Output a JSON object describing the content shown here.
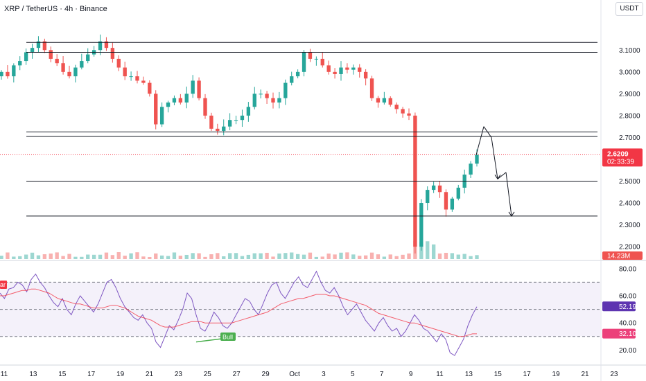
{
  "header": {
    "title": "XRP / TetherUS · 4h · Binance",
    "currency": "USDT"
  },
  "colors": {
    "up": "#26a69a",
    "down": "#ef5350",
    "rsi_line": "#7e57c2",
    "rsi_ma": "#f23645",
    "rsi_band": "#ede7f6",
    "bull_label": "#4caf50",
    "price_marker": "#f23645"
  },
  "chart_data": [
    {
      "type": "candlestick",
      "ylim": [
        2.14,
        3.25
      ],
      "y_ticks": [
        "3.1000",
        "3.0000",
        "2.9000",
        "2.8000",
        "2.7000",
        "2.6000",
        "2.5000",
        "2.4000",
        "2.3000",
        "2.2000"
      ],
      "y_tick_values": [
        3.1,
        3.0,
        2.9,
        2.8,
        2.7,
        2.6,
        2.5,
        2.4,
        2.3,
        2.2
      ],
      "x_ticks": [
        "11",
        "13",
        "15",
        "17",
        "19",
        "21",
        "23",
        "25",
        "27",
        "29",
        "Oct",
        "3",
        "5",
        "7",
        "9",
        "11",
        "13",
        "15",
        "17",
        "19",
        "21",
        "23"
      ],
      "last_price_label": "2.6209",
      "last_price": 2.6209,
      "countdown_label": "02:33:39",
      "volume_label": "14.23M",
      "horizontal_levels": [
        3.135,
        3.09,
        2.725,
        2.705,
        2.5,
        2.34
      ],
      "close_path": [
        3.0,
        2.98,
        3.03,
        3.05,
        3.09,
        3.11,
        3.14,
        3.1,
        3.06,
        3.04,
        3.0,
        2.98,
        3.02,
        3.05,
        3.08,
        3.1,
        3.14,
        3.11,
        3.06,
        3.02,
        2.98,
        2.98,
        2.96,
        2.95,
        2.9,
        2.76,
        2.84,
        2.86,
        2.88,
        2.86,
        2.9,
        2.96,
        2.88,
        2.8,
        2.74,
        2.73,
        2.75,
        2.78,
        2.78,
        2.8,
        2.84,
        2.9,
        2.9,
        2.88,
        2.86,
        2.88,
        2.95,
        2.98,
        3.0,
        3.09,
        3.06,
        3.06,
        3.03,
        3.0,
        2.99,
        3.02,
        3.01,
        3.02,
        3.0,
        2.97,
        2.88,
        2.86,
        2.88,
        2.85,
        2.83,
        2.81,
        2.8,
        2.2,
        2.4,
        2.46,
        2.48,
        2.45,
        2.37,
        2.42,
        2.47,
        2.53,
        2.58,
        2.62
      ],
      "projection": [
        [
          2.62,
          2.75
        ],
        [
          2.75,
          2.7
        ],
        [
          2.7,
          2.51
        ],
        [
          2.51,
          2.54
        ],
        [
          2.54,
          2.34
        ]
      ]
    },
    {
      "type": "line",
      "name": "RSI",
      "ylim": [
        10,
        85
      ],
      "y_ticks": [
        "80.00",
        "60.00",
        "40.00",
        "20.00"
      ],
      "y_tick_values": [
        80,
        60,
        40,
        20
      ],
      "band_levels": [
        70,
        50,
        30
      ],
      "rsi_value_label": "52.19",
      "rsi_value": 52.19,
      "rsi_ma_label": "32.10",
      "rsi_ma": 32.1,
      "left_label": "ar",
      "bull_label": "Bull",
      "values": [
        62,
        58,
        65,
        66,
        70,
        68,
        63,
        72,
        76,
        70,
        66,
        60,
        55,
        52,
        58,
        50,
        46,
        54,
        60,
        56,
        52,
        48,
        54,
        62,
        70,
        72,
        66,
        58,
        52,
        48,
        44,
        42,
        46,
        40,
        36,
        26,
        22,
        30,
        38,
        35,
        42,
        50,
        62,
        58,
        46,
        36,
        34,
        40,
        48,
        44,
        38,
        36,
        40,
        46,
        52,
        58,
        56,
        50,
        46,
        54,
        62,
        68,
        70,
        62,
        58,
        64,
        70,
        74,
        68,
        66,
        72,
        78,
        70,
        64,
        62,
        66,
        60,
        52,
        46,
        50,
        54,
        48,
        42,
        38,
        34,
        40,
        44,
        38,
        34,
        36,
        30,
        34,
        40,
        46,
        42,
        36,
        34,
        30,
        26,
        32,
        28,
        18,
        16,
        22,
        28,
        38,
        46,
        52
      ],
      "ma_values": [
        60,
        60,
        61,
        62,
        63,
        64,
        64,
        65,
        65,
        64,
        63,
        62,
        60,
        58,
        57,
        56,
        55,
        54,
        54,
        53,
        52,
        51,
        51,
        51,
        52,
        53,
        53,
        52,
        51,
        49,
        47,
        45,
        44,
        43,
        42,
        40,
        38,
        37,
        37,
        37,
        38,
        39,
        40,
        41,
        41,
        41,
        40,
        40,
        40,
        40,
        40,
        40,
        40,
        41,
        42,
        43,
        44,
        45,
        46,
        47,
        48,
        50,
        52,
        54,
        55,
        56,
        57,
        58,
        58,
        59,
        60,
        61,
        61,
        61,
        60,
        60,
        59,
        58,
        57,
        56,
        55,
        54,
        53,
        51,
        49,
        47,
        46,
        45,
        44,
        43,
        42,
        41,
        40,
        40,
        39,
        38,
        37,
        36,
        35,
        34,
        33,
        32,
        31,
        30,
        30,
        31,
        32,
        32
      ]
    }
  ]
}
